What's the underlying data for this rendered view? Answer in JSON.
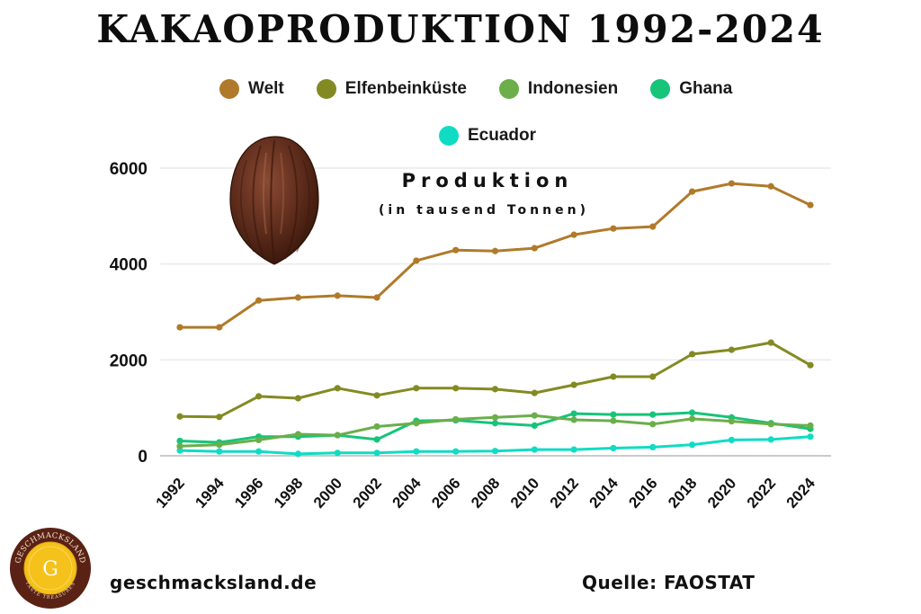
{
  "title": "KAKAOPRODUKTION 1992-2024",
  "legend": [
    {
      "label": "Welt",
      "color": "#B07A2A"
    },
    {
      "label": "Elfenbeinküste",
      "color": "#838A22"
    },
    {
      "label": "Indonesien",
      "color": "#6BAE4A"
    },
    {
      "label": "Ghana",
      "color": "#16C47A"
    },
    {
      "label": "Ecuador",
      "color": "#10DCC4"
    }
  ],
  "chart_subtitle": "Produktion",
  "chart_unit": "(in tausend Tonnen)",
  "footer": {
    "url": "geschmacksland.de",
    "source": "Quelle: FAOSTAT",
    "logo_top_text": "GESCHMACKSLAND",
    "logo_letter": "G",
    "logo_bottom_text": "TASTE TREASURES"
  },
  "chart_data": {
    "type": "line",
    "title": "KAKAOPRODUKTION 1992-2024",
    "subtitle": "Produktion (in tausend Tonnen)",
    "xlabel": "",
    "ylabel": "Produktion (in tausend Tonnen)",
    "ylim": [
      0,
      6000
    ],
    "yticks": [
      0,
      2000,
      4000,
      6000
    ],
    "grid": true,
    "legend_position": "top",
    "x": [
      1992,
      1994,
      1996,
      1998,
      2000,
      2002,
      2004,
      2006,
      2008,
      2010,
      2012,
      2014,
      2016,
      2018,
      2020,
      2022,
      2024
    ],
    "categories": [
      "1992",
      "1994",
      "1996",
      "1998",
      "2000",
      "2002",
      "2004",
      "2006",
      "2008",
      "2010",
      "2012",
      "2014",
      "2016",
      "2018",
      "2020",
      "2022",
      "2024"
    ],
    "series": [
      {
        "name": "Welt",
        "color": "#B07A2A",
        "values": [
          2680,
          2680,
          3240,
          3300,
          3340,
          3300,
          4070,
          4290,
          4270,
          4330,
          4610,
          4740,
          4780,
          5510,
          5680,
          5620,
          5230
        ]
      },
      {
        "name": "Elfenbeinküste",
        "color": "#838A22",
        "values": [
          820,
          810,
          1240,
          1200,
          1410,
          1260,
          1410,
          1410,
          1390,
          1310,
          1480,
          1650,
          1650,
          2120,
          2210,
          2360,
          1890
        ]
      },
      {
        "name": "Indonesien",
        "color": "#6BAE4A",
        "values": [
          200,
          230,
          330,
          450,
          430,
          610,
          680,
          760,
          800,
          840,
          750,
          730,
          660,
          770,
          720,
          660,
          630
        ]
      },
      {
        "name": "Ghana",
        "color": "#16C47A",
        "values": [
          310,
          280,
          400,
          400,
          430,
          340,
          730,
          740,
          680,
          630,
          880,
          860,
          860,
          900,
          800,
          680,
          560
        ]
      },
      {
        "name": "Ecuador",
        "color": "#10DCC4",
        "values": [
          110,
          90,
          90,
          40,
          60,
          60,
          90,
          90,
          100,
          130,
          130,
          160,
          180,
          230,
          330,
          340,
          400
        ]
      }
    ]
  }
}
